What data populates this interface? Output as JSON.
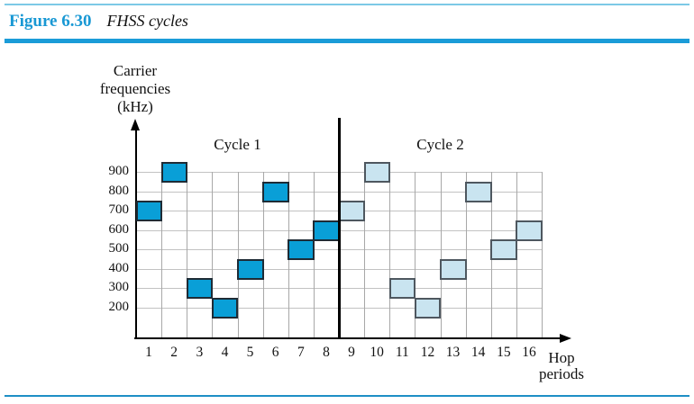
{
  "header": {
    "figure_label": "Figure 6.30",
    "figure_title": "FHSS cycles"
  },
  "colors": {
    "accent_blue": "#1b9cd8",
    "top_rule": "#7cc9e6",
    "bottom_rule": "#1e8fc5",
    "grid_line": "#b5b5b5",
    "axis": "#000000",
    "cycle1_fill": "#099fd7",
    "cycle1_border": "#1e2b35",
    "cycle2_fill": "#c9e4f0",
    "cycle2_border": "#4e575f"
  },
  "chart_data": {
    "type": "scatter",
    "title": "FHSS cycles",
    "ylabel_lines": [
      "Carrier",
      "frequencies",
      "(kHz)"
    ],
    "xlabel_lines": [
      "Hop",
      "periods"
    ],
    "yticks": [
      900,
      800,
      700,
      600,
      500,
      400,
      300,
      200
    ],
    "xticks": [
      1,
      2,
      3,
      4,
      5,
      6,
      7,
      8,
      9,
      10,
      11,
      12,
      13,
      14,
      15,
      16
    ],
    "ylim": [
      0,
      1000
    ],
    "grid": true,
    "legend_position": "none",
    "series": [
      {
        "name": "Cycle 1",
        "hops": [
          1,
          2,
          3,
          4,
          5,
          6,
          7,
          8
        ],
        "frequencies_khz": [
          700,
          900,
          300,
          200,
          400,
          800,
          500,
          600
        ],
        "fill": "#099fd7",
        "border": "#1e2b35"
      },
      {
        "name": "Cycle 2",
        "hops": [
          9,
          10,
          11,
          12,
          13,
          14,
          15,
          16
        ],
        "frequencies_khz": [
          700,
          900,
          300,
          200,
          400,
          800,
          500,
          600
        ],
        "fill": "#c9e4f0",
        "border": "#4e575f"
      }
    ]
  }
}
